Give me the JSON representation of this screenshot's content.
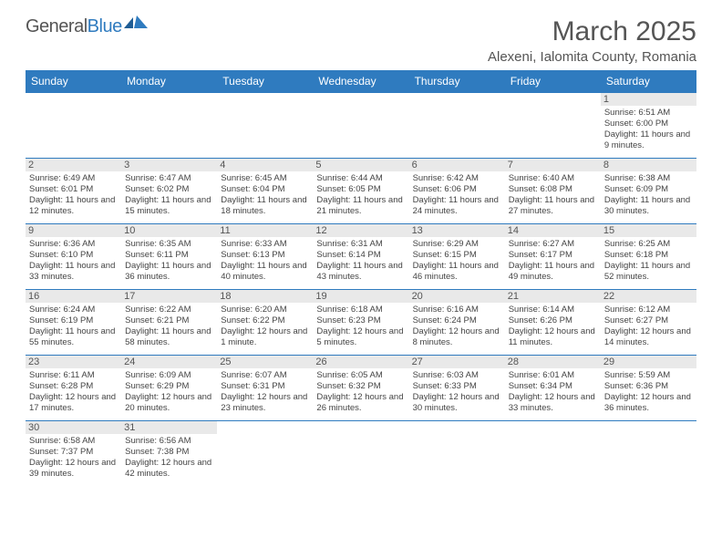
{
  "logo": {
    "part1": "General",
    "part2": "Blue"
  },
  "title": "March 2025",
  "subtitle": "Alexeni, Ialomita County, Romania",
  "colors": {
    "header_bg": "#2f7bbf",
    "header_text": "#ffffff",
    "border": "#2f7bbf",
    "daynum_bg": "#e9e9e9",
    "text": "#444444",
    "title_color": "#555555"
  },
  "daysOfWeek": [
    "Sunday",
    "Monday",
    "Tuesday",
    "Wednesday",
    "Thursday",
    "Friday",
    "Saturday"
  ],
  "weeks": [
    [
      null,
      null,
      null,
      null,
      null,
      null,
      {
        "n": "1",
        "sr": "6:51 AM",
        "ss": "6:00 PM",
        "dl": "11 hours and 9 minutes."
      }
    ],
    [
      {
        "n": "2",
        "sr": "6:49 AM",
        "ss": "6:01 PM",
        "dl": "11 hours and 12 minutes."
      },
      {
        "n": "3",
        "sr": "6:47 AM",
        "ss": "6:02 PM",
        "dl": "11 hours and 15 minutes."
      },
      {
        "n": "4",
        "sr": "6:45 AM",
        "ss": "6:04 PM",
        "dl": "11 hours and 18 minutes."
      },
      {
        "n": "5",
        "sr": "6:44 AM",
        "ss": "6:05 PM",
        "dl": "11 hours and 21 minutes."
      },
      {
        "n": "6",
        "sr": "6:42 AM",
        "ss": "6:06 PM",
        "dl": "11 hours and 24 minutes."
      },
      {
        "n": "7",
        "sr": "6:40 AM",
        "ss": "6:08 PM",
        "dl": "11 hours and 27 minutes."
      },
      {
        "n": "8",
        "sr": "6:38 AM",
        "ss": "6:09 PM",
        "dl": "11 hours and 30 minutes."
      }
    ],
    [
      {
        "n": "9",
        "sr": "6:36 AM",
        "ss": "6:10 PM",
        "dl": "11 hours and 33 minutes."
      },
      {
        "n": "10",
        "sr": "6:35 AM",
        "ss": "6:11 PM",
        "dl": "11 hours and 36 minutes."
      },
      {
        "n": "11",
        "sr": "6:33 AM",
        "ss": "6:13 PM",
        "dl": "11 hours and 40 minutes."
      },
      {
        "n": "12",
        "sr": "6:31 AM",
        "ss": "6:14 PM",
        "dl": "11 hours and 43 minutes."
      },
      {
        "n": "13",
        "sr": "6:29 AM",
        "ss": "6:15 PM",
        "dl": "11 hours and 46 minutes."
      },
      {
        "n": "14",
        "sr": "6:27 AM",
        "ss": "6:17 PM",
        "dl": "11 hours and 49 minutes."
      },
      {
        "n": "15",
        "sr": "6:25 AM",
        "ss": "6:18 PM",
        "dl": "11 hours and 52 minutes."
      }
    ],
    [
      {
        "n": "16",
        "sr": "6:24 AM",
        "ss": "6:19 PM",
        "dl": "11 hours and 55 minutes."
      },
      {
        "n": "17",
        "sr": "6:22 AM",
        "ss": "6:21 PM",
        "dl": "11 hours and 58 minutes."
      },
      {
        "n": "18",
        "sr": "6:20 AM",
        "ss": "6:22 PM",
        "dl": "12 hours and 1 minute."
      },
      {
        "n": "19",
        "sr": "6:18 AM",
        "ss": "6:23 PM",
        "dl": "12 hours and 5 minutes."
      },
      {
        "n": "20",
        "sr": "6:16 AM",
        "ss": "6:24 PM",
        "dl": "12 hours and 8 minutes."
      },
      {
        "n": "21",
        "sr": "6:14 AM",
        "ss": "6:26 PM",
        "dl": "12 hours and 11 minutes."
      },
      {
        "n": "22",
        "sr": "6:12 AM",
        "ss": "6:27 PM",
        "dl": "12 hours and 14 minutes."
      }
    ],
    [
      {
        "n": "23",
        "sr": "6:11 AM",
        "ss": "6:28 PM",
        "dl": "12 hours and 17 minutes."
      },
      {
        "n": "24",
        "sr": "6:09 AM",
        "ss": "6:29 PM",
        "dl": "12 hours and 20 minutes."
      },
      {
        "n": "25",
        "sr": "6:07 AM",
        "ss": "6:31 PM",
        "dl": "12 hours and 23 minutes."
      },
      {
        "n": "26",
        "sr": "6:05 AM",
        "ss": "6:32 PM",
        "dl": "12 hours and 26 minutes."
      },
      {
        "n": "27",
        "sr": "6:03 AM",
        "ss": "6:33 PM",
        "dl": "12 hours and 30 minutes."
      },
      {
        "n": "28",
        "sr": "6:01 AM",
        "ss": "6:34 PM",
        "dl": "12 hours and 33 minutes."
      },
      {
        "n": "29",
        "sr": "5:59 AM",
        "ss": "6:36 PM",
        "dl": "12 hours and 36 minutes."
      }
    ],
    [
      {
        "n": "30",
        "sr": "6:58 AM",
        "ss": "7:37 PM",
        "dl": "12 hours and 39 minutes."
      },
      {
        "n": "31",
        "sr": "6:56 AM",
        "ss": "7:38 PM",
        "dl": "12 hours and 42 minutes."
      },
      null,
      null,
      null,
      null,
      null
    ]
  ],
  "labels": {
    "sunrise": "Sunrise: ",
    "sunset": "Sunset: ",
    "daylight": "Daylight: "
  }
}
